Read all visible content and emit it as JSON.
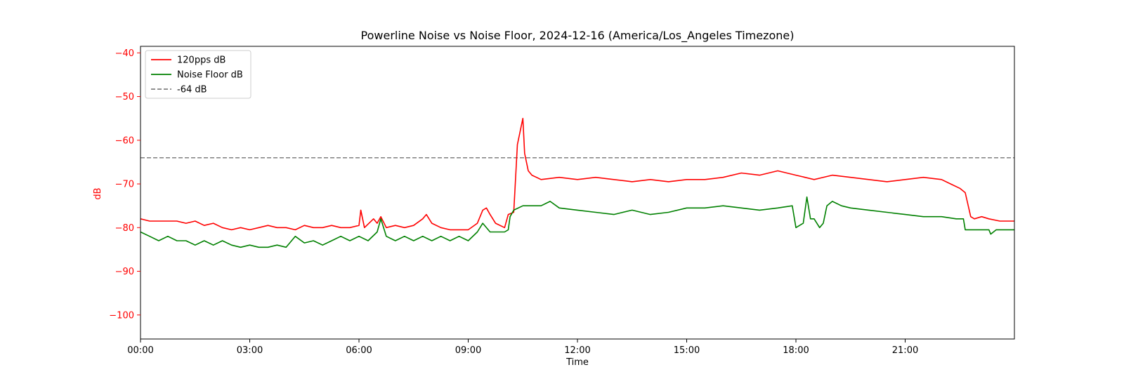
{
  "chart_data": {
    "type": "line",
    "title": "Powerline Noise vs Noise Floor, 2024-12-16 (America/Los_Angeles Timezone)",
    "xlabel": "Time",
    "ylabel": "dB",
    "x_axis": {
      "unit": "hour of day",
      "range_hours": [
        0,
        24
      ],
      "ticks": [
        {
          "hour": 0,
          "label": "00:00"
        },
        {
          "hour": 3,
          "label": "03:00"
        },
        {
          "hour": 6,
          "label": "06:00"
        },
        {
          "hour": 9,
          "label": "09:00"
        },
        {
          "hour": 12,
          "label": "12:00"
        },
        {
          "hour": 15,
          "label": "15:00"
        },
        {
          "hour": 18,
          "label": "18:00"
        },
        {
          "hour": 21,
          "label": "21:00"
        }
      ]
    },
    "ylim": [
      -105.5,
      -38.5
    ],
    "y_ticks": [
      -40,
      -50,
      -60,
      -70,
      -80,
      -90,
      -100
    ],
    "y_tick_labels": [
      "−40",
      "−50",
      "−60",
      "−70",
      "−80",
      "−90",
      "−100"
    ],
    "ylabel_color": "#ff0000",
    "grid": false,
    "legend": {
      "placement": "top-left",
      "entries": [
        {
          "label": "120pps dB",
          "color": "#ff0000",
          "style": "solid"
        },
        {
          "label": "Noise Floor dB",
          "color": "#008000",
          "style": "solid"
        },
        {
          "label": "-64 dB",
          "color": "#808080",
          "style": "dashed"
        }
      ]
    },
    "reference_line": {
      "y": -64,
      "label": "-64 dB",
      "color": "#808080",
      "style": "dashed"
    },
    "series": [
      {
        "name": "120pps dB",
        "color": "#ff0000",
        "points": [
          [
            0.0,
            -78
          ],
          [
            0.25,
            -78.5
          ],
          [
            0.5,
            -78.5
          ],
          [
            0.75,
            -78.5
          ],
          [
            1.0,
            -78.5
          ],
          [
            1.25,
            -79
          ],
          [
            1.5,
            -78.5
          ],
          [
            1.75,
            -79.5
          ],
          [
            2.0,
            -79
          ],
          [
            2.25,
            -80
          ],
          [
            2.5,
            -80.5
          ],
          [
            2.75,
            -80
          ],
          [
            3.0,
            -80.5
          ],
          [
            3.25,
            -80
          ],
          [
            3.5,
            -79.5
          ],
          [
            3.75,
            -80
          ],
          [
            4.0,
            -80
          ],
          [
            4.25,
            -80.5
          ],
          [
            4.5,
            -79.5
          ],
          [
            4.75,
            -80
          ],
          [
            5.0,
            -80
          ],
          [
            5.25,
            -79.5
          ],
          [
            5.5,
            -80
          ],
          [
            5.75,
            -80
          ],
          [
            6.0,
            -79.5
          ],
          [
            6.05,
            -76
          ],
          [
            6.15,
            -80
          ],
          [
            6.4,
            -78
          ],
          [
            6.5,
            -79
          ],
          [
            6.6,
            -77.5
          ],
          [
            6.75,
            -80
          ],
          [
            7.0,
            -79.5
          ],
          [
            7.25,
            -80
          ],
          [
            7.5,
            -79.5
          ],
          [
            7.75,
            -78
          ],
          [
            7.85,
            -77
          ],
          [
            8.0,
            -79
          ],
          [
            8.25,
            -80
          ],
          [
            8.5,
            -80.5
          ],
          [
            8.75,
            -80.5
          ],
          [
            9.0,
            -80.5
          ],
          [
            9.25,
            -79
          ],
          [
            9.4,
            -76
          ],
          [
            9.5,
            -75.5
          ],
          [
            9.6,
            -77
          ],
          [
            9.75,
            -79
          ],
          [
            10.0,
            -80
          ],
          [
            10.1,
            -77
          ],
          [
            10.25,
            -76.5
          ],
          [
            10.35,
            -61
          ],
          [
            10.45,
            -57
          ],
          [
            10.5,
            -55
          ],
          [
            10.55,
            -63
          ],
          [
            10.65,
            -67
          ],
          [
            10.75,
            -68
          ],
          [
            11.0,
            -69
          ],
          [
            11.5,
            -68.5
          ],
          [
            12.0,
            -69
          ],
          [
            12.5,
            -68.5
          ],
          [
            13.0,
            -69
          ],
          [
            13.5,
            -69.5
          ],
          [
            14.0,
            -69
          ],
          [
            14.5,
            -69.5
          ],
          [
            15.0,
            -69
          ],
          [
            15.5,
            -69
          ],
          [
            16.0,
            -68.5
          ],
          [
            16.5,
            -67.5
          ],
          [
            17.0,
            -68
          ],
          [
            17.5,
            -67
          ],
          [
            18.0,
            -68
          ],
          [
            18.5,
            -69
          ],
          [
            19.0,
            -68
          ],
          [
            19.5,
            -68.5
          ],
          [
            20.0,
            -69
          ],
          [
            20.5,
            -69.5
          ],
          [
            21.0,
            -69
          ],
          [
            21.5,
            -68.5
          ],
          [
            22.0,
            -69
          ],
          [
            22.25,
            -70
          ],
          [
            22.5,
            -71
          ],
          [
            22.65,
            -72
          ],
          [
            22.8,
            -77.5
          ],
          [
            22.9,
            -78
          ],
          [
            23.1,
            -77.5
          ],
          [
            23.3,
            -78
          ],
          [
            23.6,
            -78.5
          ],
          [
            24.0,
            -78.5
          ]
        ]
      },
      {
        "name": "Noise Floor dB",
        "color": "#008000",
        "points": [
          [
            0.0,
            -81
          ],
          [
            0.25,
            -82
          ],
          [
            0.5,
            -83
          ],
          [
            0.75,
            -82
          ],
          [
            1.0,
            -83
          ],
          [
            1.25,
            -83
          ],
          [
            1.5,
            -84
          ],
          [
            1.75,
            -83
          ],
          [
            2.0,
            -84
          ],
          [
            2.25,
            -83
          ],
          [
            2.5,
            -84
          ],
          [
            2.75,
            -84.5
          ],
          [
            3.0,
            -84
          ],
          [
            3.25,
            -84.5
          ],
          [
            3.5,
            -84.5
          ],
          [
            3.75,
            -84
          ],
          [
            4.0,
            -84.5
          ],
          [
            4.25,
            -82
          ],
          [
            4.5,
            -83.5
          ],
          [
            4.75,
            -83
          ],
          [
            5.0,
            -84
          ],
          [
            5.25,
            -83
          ],
          [
            5.5,
            -82
          ],
          [
            5.75,
            -83
          ],
          [
            6.0,
            -82
          ],
          [
            6.25,
            -83
          ],
          [
            6.5,
            -81
          ],
          [
            6.6,
            -78
          ],
          [
            6.75,
            -82
          ],
          [
            7.0,
            -83
          ],
          [
            7.25,
            -82
          ],
          [
            7.5,
            -83
          ],
          [
            7.75,
            -82
          ],
          [
            8.0,
            -83
          ],
          [
            8.25,
            -82
          ],
          [
            8.5,
            -83
          ],
          [
            8.75,
            -82
          ],
          [
            9.0,
            -83
          ],
          [
            9.25,
            -81
          ],
          [
            9.4,
            -79
          ],
          [
            9.6,
            -81
          ],
          [
            9.75,
            -81
          ],
          [
            10.0,
            -81
          ],
          [
            10.1,
            -80.5
          ],
          [
            10.15,
            -77.5
          ],
          [
            10.25,
            -76
          ],
          [
            10.5,
            -75
          ],
          [
            10.75,
            -75
          ],
          [
            11.0,
            -75
          ],
          [
            11.25,
            -74
          ],
          [
            11.5,
            -75.5
          ],
          [
            12.0,
            -76
          ],
          [
            12.5,
            -76.5
          ],
          [
            13.0,
            -77
          ],
          [
            13.5,
            -76
          ],
          [
            14.0,
            -77
          ],
          [
            14.5,
            -76.5
          ],
          [
            15.0,
            -75.5
          ],
          [
            15.5,
            -75.5
          ],
          [
            16.0,
            -75
          ],
          [
            16.5,
            -75.5
          ],
          [
            17.0,
            -76
          ],
          [
            17.5,
            -75.5
          ],
          [
            17.9,
            -75
          ],
          [
            18.0,
            -80
          ],
          [
            18.2,
            -79
          ],
          [
            18.3,
            -73
          ],
          [
            18.4,
            -78
          ],
          [
            18.5,
            -78
          ],
          [
            18.65,
            -80
          ],
          [
            18.75,
            -79
          ],
          [
            18.85,
            -75
          ],
          [
            19.0,
            -74
          ],
          [
            19.25,
            -75
          ],
          [
            19.5,
            -75.5
          ],
          [
            20.0,
            -76
          ],
          [
            20.5,
            -76.5
          ],
          [
            21.0,
            -77
          ],
          [
            21.5,
            -77.5
          ],
          [
            22.0,
            -77.5
          ],
          [
            22.4,
            -78
          ],
          [
            22.6,
            -78
          ],
          [
            22.65,
            -80.5
          ],
          [
            23.0,
            -80.5
          ],
          [
            23.3,
            -80.5
          ],
          [
            23.35,
            -81.5
          ],
          [
            23.5,
            -80.5
          ],
          [
            24.0,
            -80.5
          ]
        ]
      }
    ]
  }
}
